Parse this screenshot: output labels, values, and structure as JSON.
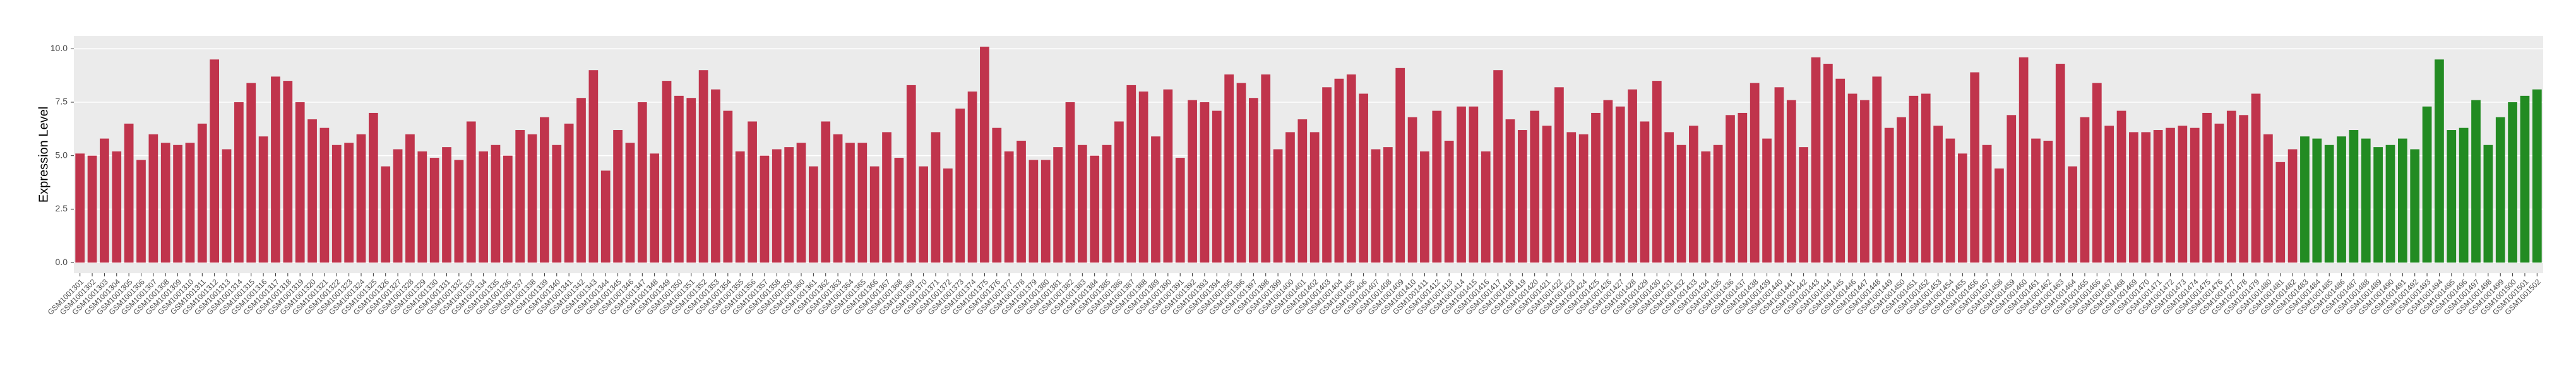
{
  "chart_data": {
    "type": "bar",
    "y_label": "Expression Level",
    "ylim": [
      -0.5,
      10.6
    ],
    "yticks": [
      {
        "value": 0,
        "label": "0.0"
      },
      2.5,
      {
        "value": 5,
        "label": "5.0"
      },
      7.5,
      {
        "value": 10,
        "label": "10.0"
      }
    ],
    "grid": true,
    "categories": [
      "GSM1001301",
      "GSM1001302",
      "GSM1001303",
      "GSM1001304",
      "GSM1001305",
      "GSM1001306",
      "GSM1001307",
      "GSM1001308",
      "GSM1001309",
      "GSM1001310",
      "GSM1001311",
      "GSM1001312",
      "GSM1001313",
      "GSM1001314",
      "GSM1001315",
      "GSM1001316",
      "GSM1001317",
      "GSM1001318",
      "GSM1001319",
      "GSM1001320",
      "GSM1001321",
      "GSM1001322",
      "GSM1001323",
      "GSM1001324",
      "GSM1001325",
      "GSM1001326",
      "GSM1001327",
      "GSM1001328",
      "GSM1001329",
      "GSM1001330",
      "GSM1001331",
      "GSM1001332",
      "GSM1001333",
      "GSM1001334",
      "GSM1001335",
      "GSM1001336",
      "GSM1001337",
      "GSM1001338",
      "GSM1001339",
      "GSM1001340",
      "GSM1001341",
      "GSM1001342",
      "GSM1001343",
      "GSM1001344",
      "GSM1001345",
      "GSM1001346",
      "GSM1001347",
      "GSM1001348",
      "GSM1001349",
      "GSM1001350",
      "GSM1001351",
      "GSM1001352",
      "GSM1001353",
      "GSM1001354",
      "GSM1001355",
      "GSM1001356",
      "GSM1001357",
      "GSM1001358",
      "GSM1001359",
      "GSM1001360",
      "GSM1001361",
      "GSM1001362",
      "GSM1001363",
      "GSM1001364",
      "GSM1001365",
      "GSM1001366",
      "GSM1001367",
      "GSM1001368",
      "GSM1001369",
      "GSM1001370",
      "GSM1001371",
      "GSM1001372",
      "GSM1001373",
      "GSM1001374",
      "GSM1001375",
      "GSM1001376",
      "GSM1001377",
      "GSM1001378",
      "GSM1001379",
      "GSM1001380",
      "GSM1001381",
      "GSM1001382",
      "GSM1001383",
      "GSM1001384",
      "GSM1001385",
      "GSM1001386",
      "GSM1001387",
      "GSM1001388",
      "GSM1001389",
      "GSM1001390",
      "GSM1001391",
      "GSM1001392",
      "GSM1001393",
      "GSM1001394",
      "GSM1001395",
      "GSM1001396",
      "GSM1001397",
      "GSM1001398",
      "GSM1001399",
      "GSM1001400",
      "GSM1001401",
      "GSM1001402",
      "GSM1001403",
      "GSM1001404",
      "GSM1001405",
      "GSM1001406",
      "GSM1001407",
      "GSM1001408",
      "GSM1001409",
      "GSM1001410",
      "GSM1001411",
      "GSM1001412",
      "GSM1001413",
      "GSM1001414",
      "GSM1001415",
      "GSM1001416",
      "GSM1001417",
      "GSM1001418",
      "GSM1001419",
      "GSM1001420",
      "GSM1001421",
      "GSM1001422",
      "GSM1001423",
      "GSM1001424",
      "GSM1001425",
      "GSM1001426",
      "GSM1001427",
      "GSM1001428",
      "GSM1001429",
      "GSM1001430",
      "GSM1001431",
      "GSM1001432",
      "GSM1001433",
      "GSM1001434",
      "GSM1001435",
      "GSM1001436",
      "GSM1001437",
      "GSM1001438",
      "GSM1001439",
      "GSM1001440",
      "GSM1001441",
      "GSM1001442",
      "GSM1001443",
      "GSM1001444",
      "GSM1001445",
      "GSM1001446",
      "GSM1001447",
      "GSM1001448",
      "GSM1001449",
      "GSM1001450",
      "GSM1001451",
      "GSM1001452",
      "GSM1001453",
      "GSM1001454",
      "GSM1001455",
      "GSM1001456",
      "GSM1001457",
      "GSM1001458",
      "GSM1001459",
      "GSM1001460",
      "GSM1001461",
      "GSM1001462",
      "GSM1001463",
      "GSM1001464",
      "GSM1001465",
      "GSM1001466",
      "GSM1001467",
      "GSM1001468",
      "GSM1001469",
      "GSM1001470",
      "GSM1001471",
      "GSM1001472",
      "GSM1001473",
      "GSM1001474",
      "GSM1001475",
      "GSM1001476",
      "GSM1001477",
      "GSM1001478",
      "GSM1001479",
      "GSM1001480",
      "GSM1001481",
      "GSM1001482",
      "GSM1001483",
      "GSM1001484",
      "GSM1001485",
      "GSM1001486",
      "GSM1001487",
      "GSM1001488",
      "GSM1001489",
      "GSM1001490",
      "GSM1001491",
      "GSM1001492",
      "GSM1001493",
      "GSM1001494",
      "GSM1001495",
      "GSM1001496",
      "GSM1001497",
      "GSM1001498",
      "GSM1001499",
      "GSM1001500",
      "GSM1001501",
      "GSM1001502"
    ],
    "series": [
      {
        "color": "#c0344c",
        "values": [
          5.1,
          5.0,
          5.8,
          5.2,
          6.5,
          4.8,
          6.0,
          5.6,
          5.5,
          5.6,
          6.5,
          9.5,
          5.3,
          7.5,
          8.4,
          5.9,
          8.7,
          8.5,
          7.5,
          6.7,
          6.3,
          5.5,
          5.6,
          6.0,
          7.0,
          4.5,
          5.3,
          6.0,
          5.2,
          4.9,
          5.4,
          4.8,
          6.6,
          5.2,
          5.5,
          5.0,
          6.2,
          6.0,
          6.8,
          5.5,
          6.5,
          7.7,
          9.0,
          4.3,
          6.2,
          5.6,
          7.5,
          5.1,
          8.5,
          7.8,
          7.7,
          9.0,
          8.1,
          7.1,
          5.2,
          6.6,
          5.0,
          5.3,
          5.4,
          5.6,
          4.5,
          6.6,
          6.0,
          5.6,
          5.6,
          4.5,
          6.1,
          4.9,
          8.3,
          4.5,
          6.1,
          4.4,
          7.2,
          8.0,
          10.1,
          6.3,
          5.2,
          5.7,
          4.8,
          4.8,
          5.4,
          7.5,
          5.5,
          5.0,
          5.5,
          6.6,
          8.3,
          8.0,
          5.9,
          8.1,
          4.9,
          7.6,
          7.5,
          7.1,
          8.8,
          8.4,
          7.7,
          8.8,
          5.3,
          6.1,
          6.7,
          6.1,
          8.2,
          8.6,
          8.8,
          7.9,
          5.3,
          5.4,
          9.1,
          6.8,
          5.2,
          7.1,
          5.7,
          7.3,
          7.3,
          5.2,
          9.0,
          6.7,
          6.2,
          7.1,
          6.4,
          8.2,
          6.1,
          6.0,
          7.0,
          7.6,
          7.3,
          8.1,
          6.6,
          8.5,
          6.1,
          5.5,
          6.4,
          5.2,
          5.5,
          6.9,
          7.0,
          8.4,
          5.8,
          8.2,
          7.6,
          5.4,
          9.6,
          9.3,
          8.6,
          7.9,
          7.6,
          8.7,
          6.3,
          6.8,
          7.8,
          7.9,
          6.4,
          5.8,
          5.1,
          8.9,
          5.5,
          4.4,
          6.9,
          9.6,
          5.8,
          5.7,
          9.3,
          4.5,
          6.8,
          8.4,
          6.4,
          7.1,
          6.1,
          6.1,
          6.2,
          6.3,
          6.4,
          6.3,
          7.0,
          6.5,
          7.1,
          6.9,
          7.9,
          6.0,
          4.7,
          5.3,
          null,
          null,
          null,
          null,
          null,
          null,
          null,
          null,
          null,
          null,
          null,
          null,
          null,
          null,
          null,
          null,
          null,
          null,
          null,
          null
        ]
      },
      {
        "color": "#228b22",
        "values": [
          null,
          null,
          null,
          null,
          null,
          null,
          null,
          null,
          null,
          null,
          null,
          null,
          null,
          null,
          null,
          null,
          null,
          null,
          null,
          null,
          null,
          null,
          null,
          null,
          null,
          null,
          null,
          null,
          null,
          null,
          null,
          null,
          null,
          null,
          null,
          null,
          null,
          null,
          null,
          null,
          null,
          null,
          null,
          null,
          null,
          null,
          null,
          null,
          null,
          null,
          null,
          null,
          null,
          null,
          null,
          null,
          null,
          null,
          null,
          null,
          null,
          null,
          null,
          null,
          null,
          null,
          null,
          null,
          null,
          null,
          null,
          null,
          null,
          null,
          null,
          null,
          null,
          null,
          null,
          null,
          null,
          null,
          null,
          null,
          null,
          null,
          null,
          null,
          null,
          null,
          null,
          null,
          null,
          null,
          null,
          null,
          null,
          null,
          null,
          null,
          null,
          null,
          null,
          null,
          null,
          null,
          null,
          null,
          null,
          null,
          null,
          null,
          null,
          null,
          null,
          null,
          null,
          null,
          null,
          null,
          null,
          null,
          null,
          null,
          null,
          null,
          null,
          null,
          null,
          null,
          null,
          null,
          null,
          null,
          null,
          null,
          null,
          null,
          null,
          null,
          null,
          null,
          null,
          null,
          null,
          null,
          null,
          null,
          null,
          null,
          null,
          null,
          null,
          null,
          null,
          null,
          null,
          null,
          null,
          null,
          null,
          null,
          null,
          null,
          null,
          null,
          null,
          null,
          null,
          null,
          null,
          null,
          null,
          null,
          null,
          null,
          null,
          null,
          null,
          null,
          null,
          null,
          5.9,
          5.8,
          5.5,
          5.9,
          6.2,
          5.8,
          5.4,
          5.5,
          5.8,
          5.3,
          7.3,
          9.5,
          6.2,
          6.3,
          7.6,
          5.5,
          6.8,
          7.5,
          7.8,
          8.1
        ]
      }
    ]
  }
}
